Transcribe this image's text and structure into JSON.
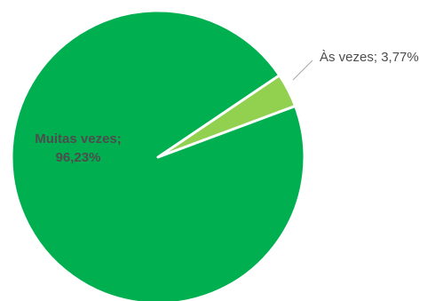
{
  "chart_data": {
    "type": "pie",
    "title": "",
    "slices": [
      {
        "label": "Às vezes",
        "value": 3.77,
        "display": "Às vezes; 3,77%",
        "color": "#92d050"
      },
      {
        "label": "Muitas vezes",
        "value": 96.23,
        "display_line1": "Muitas vezes;",
        "display_line2": "96,23%",
        "color": "#00b050"
      }
    ],
    "slice_border_color": "#ffffff",
    "leader_line_color": "#a6a6a6",
    "legend": "none"
  }
}
